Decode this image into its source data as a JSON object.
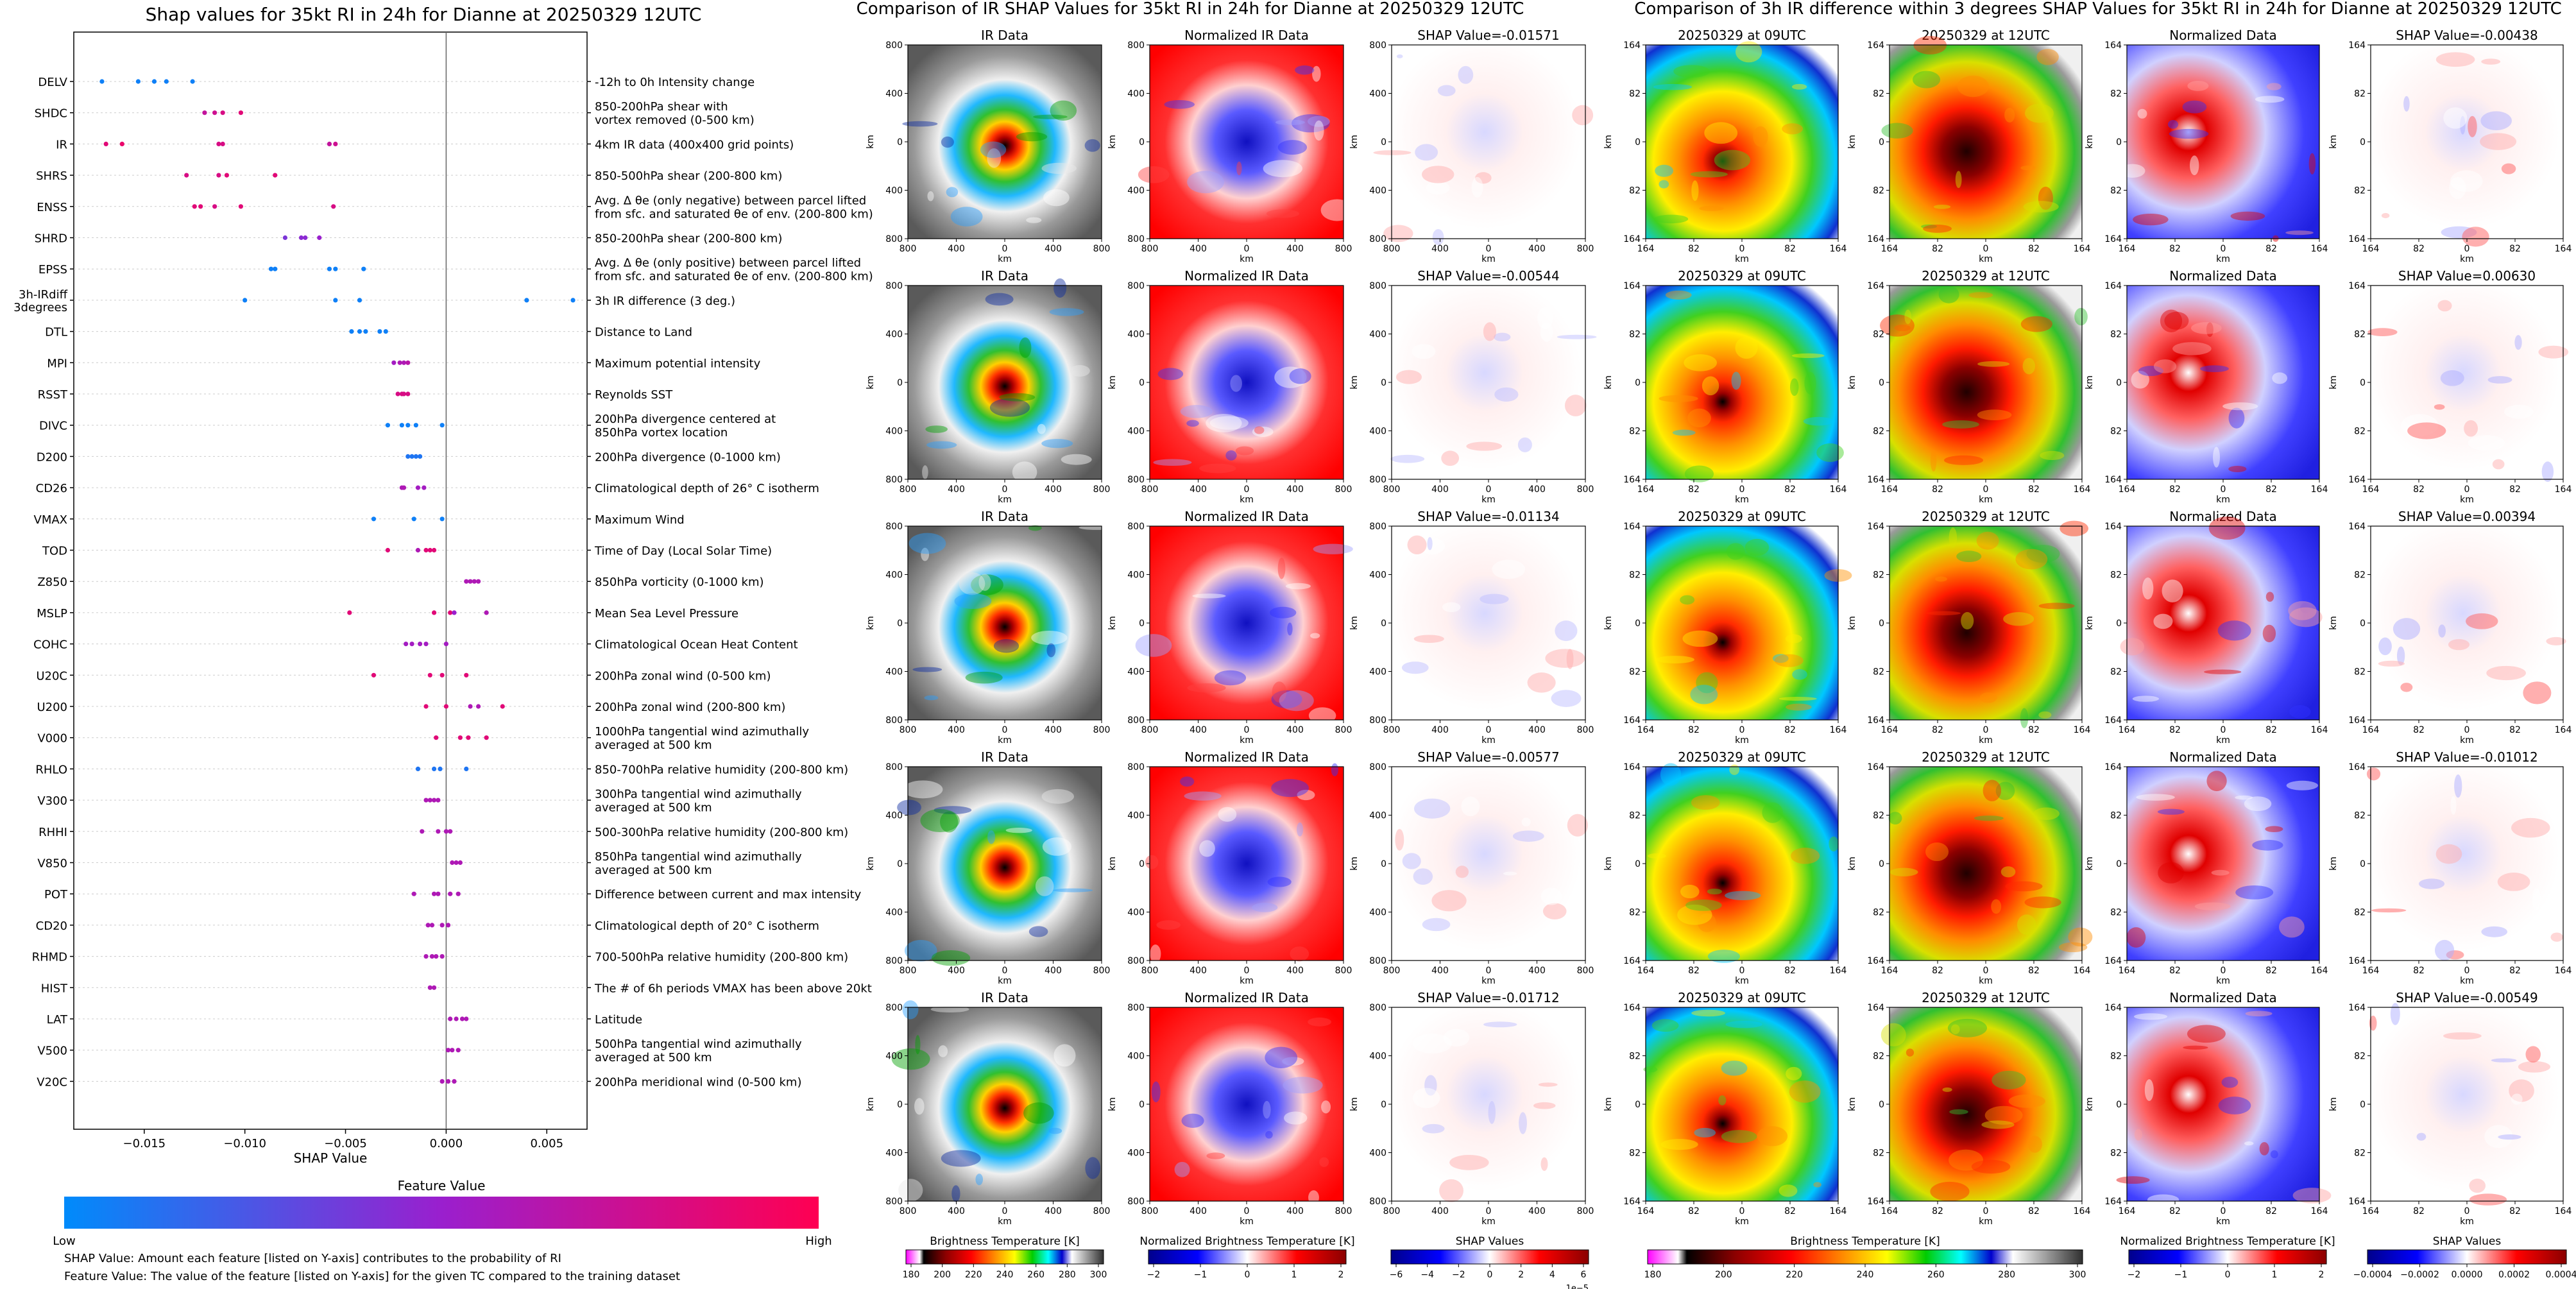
{
  "beeswarm": {
    "chart_data": {
      "type": "scatter",
      "title": "Shap values for 35kt RI in 24h for Dianne at 20250329 12UTC",
      "xlabel": "SHAP Value",
      "xlim": [
        -0.0185,
        0.007
      ],
      "xticks": [
        -0.015,
        -0.01,
        -0.005,
        0.0,
        0.005
      ],
      "xtick_labels": [
        "−0.015",
        "−0.010",
        "−0.005",
        "0.000",
        "0.005"
      ],
      "features": [
        {
          "code": "DELV",
          "desc": [
            "-12h to 0h Intensity change"
          ],
          "points": [
            [
              -0.0171,
              0.05
            ],
            [
              -0.0153,
              0.05
            ],
            [
              -0.0145,
              0.05
            ],
            [
              -0.0139,
              0.05
            ],
            [
              -0.0126,
              0.05
            ]
          ]
        },
        {
          "code": "SHDC",
          "desc": [
            "850-200hPa shear with",
            "vortex removed (0-500 km)"
          ],
          "points": [
            [
              -0.012,
              0.7
            ],
            [
              -0.0115,
              0.75
            ],
            [
              -0.0111,
              0.8
            ],
            [
              -0.0102,
              0.85
            ]
          ]
        },
        {
          "code": "IR",
          "desc": [
            "4km IR data (400x400 grid points)"
          ],
          "points": [
            [
              -0.0169,
              0.85
            ],
            [
              -0.0161,
              0.9
            ],
            [
              -0.0113,
              0.8
            ],
            [
              -0.0111,
              0.8
            ],
            [
              -0.0058,
              0.7
            ],
            [
              -0.0055,
              0.75
            ]
          ]
        },
        {
          "code": "SHRS",
          "desc": [
            "850-500hPa shear (200-800 km)"
          ],
          "points": [
            [
              -0.0129,
              0.8
            ],
            [
              -0.0113,
              0.8
            ],
            [
              -0.0109,
              0.85
            ],
            [
              -0.0085,
              0.85
            ]
          ]
        },
        {
          "code": "ENSS",
          "desc": [
            "Avg. Δ θe (only negative) between parcel lifted",
            "from sfc. and saturated θe of env. (200-800 km)"
          ],
          "points": [
            [
              -0.0125,
              0.85
            ],
            [
              -0.0122,
              0.85
            ],
            [
              -0.0115,
              0.8
            ],
            [
              -0.0102,
              0.85
            ],
            [
              -0.0056,
              0.8
            ]
          ]
        },
        {
          "code": "SHRD",
          "desc": [
            "850-200hPa shear (200-800 km)"
          ],
          "points": [
            [
              -0.008,
              0.4
            ],
            [
              -0.0072,
              0.45
            ],
            [
              -0.007,
              0.45
            ],
            [
              -0.0063,
              0.5
            ]
          ]
        },
        {
          "code": "EPSS",
          "desc": [
            "Avg. Δ θe (only positive) between parcel lifted",
            "from sfc. and saturated θe of env. (200-800 km)"
          ],
          "points": [
            [
              -0.0087,
              0.05
            ],
            [
              -0.0085,
              0.05
            ],
            [
              -0.0058,
              0.05
            ],
            [
              -0.0055,
              0.05
            ],
            [
              -0.0041,
              0.05
            ]
          ]
        },
        {
          "code": "3h-IRdiff\n3degrees",
          "desc": [
            "3h IR difference (3 deg.)"
          ],
          "points": [
            [
              -0.01,
              0.05
            ],
            [
              -0.0055,
              0.05
            ],
            [
              -0.0043,
              0.05
            ],
            [
              0.004,
              0.05
            ],
            [
              0.0063,
              0.05
            ]
          ]
        },
        {
          "code": "DTL",
          "desc": [
            "Distance to Land"
          ],
          "points": [
            [
              -0.0047,
              0.05
            ],
            [
              -0.0043,
              0.05
            ],
            [
              -0.004,
              0.05
            ],
            [
              -0.0033,
              0.05
            ],
            [
              -0.003,
              0.05
            ]
          ]
        },
        {
          "code": "MPI",
          "desc": [
            "Maximum potential intensity"
          ],
          "points": [
            [
              -0.0026,
              0.55
            ],
            [
              -0.0023,
              0.6
            ],
            [
              -0.0021,
              0.6
            ],
            [
              -0.0019,
              0.65
            ]
          ]
        },
        {
          "code": "RSST",
          "desc": [
            "Reynolds SST"
          ],
          "points": [
            [
              -0.0024,
              0.8
            ],
            [
              -0.0022,
              0.8
            ],
            [
              -0.0021,
              0.8
            ],
            [
              -0.0019,
              0.8
            ]
          ]
        },
        {
          "code": "DIVC",
          "desc": [
            "200hPa divergence centered at",
            "850hPa vortex location"
          ],
          "points": [
            [
              -0.0029,
              0.05
            ],
            [
              -0.0022,
              0.05
            ],
            [
              -0.0019,
              0.05
            ],
            [
              -0.0015,
              0.05
            ],
            [
              -0.0002,
              0.05
            ]
          ]
        },
        {
          "code": "D200",
          "desc": [
            "200hPa divergence (0-1000 km)"
          ],
          "points": [
            [
              -0.0019,
              0.1
            ],
            [
              -0.0017,
              0.1
            ],
            [
              -0.0015,
              0.1
            ],
            [
              -0.0013,
              0.1
            ]
          ]
        },
        {
          "code": "CD26",
          "desc": [
            "Climatological depth of 26° C isotherm"
          ],
          "points": [
            [
              -0.0022,
              0.6
            ],
            [
              -0.0021,
              0.6
            ],
            [
              -0.0014,
              0.55
            ],
            [
              -0.0011,
              0.55
            ]
          ]
        },
        {
          "code": "VMAX",
          "desc": [
            "Maximum Wind"
          ],
          "points": [
            [
              -0.0036,
              0.05
            ],
            [
              -0.0016,
              0.05
            ],
            [
              -0.0002,
              0.05
            ]
          ]
        },
        {
          "code": "TOD",
          "desc": [
            "Time of Day (Local Solar Time)"
          ],
          "points": [
            [
              -0.0029,
              0.85
            ],
            [
              -0.0014,
              0.6
            ],
            [
              -0.001,
              0.85
            ],
            [
              -0.0008,
              0.85
            ],
            [
              -0.0006,
              0.85
            ]
          ]
        },
        {
          "code": "Z850",
          "desc": [
            "850hPa vorticity (0-1000 km)"
          ],
          "points": [
            [
              0.001,
              0.6
            ],
            [
              0.0012,
              0.6
            ],
            [
              0.0014,
              0.6
            ],
            [
              0.0016,
              0.6
            ]
          ]
        },
        {
          "code": "MSLP",
          "desc": [
            "Mean Sea Level Pressure"
          ],
          "points": [
            [
              -0.0048,
              0.85
            ],
            [
              -0.0006,
              0.85
            ],
            [
              0.0002,
              0.85
            ],
            [
              0.0004,
              0.5
            ],
            [
              0.002,
              0.6
            ]
          ]
        },
        {
          "code": "COHC",
          "desc": [
            "Climatological Ocean Heat Content"
          ],
          "points": [
            [
              -0.002,
              0.55
            ],
            [
              -0.0017,
              0.55
            ],
            [
              -0.0013,
              0.55
            ],
            [
              -0.001,
              0.55
            ],
            [
              0.0,
              0.55
            ]
          ]
        },
        {
          "code": "U20C",
          "desc": [
            "200hPa zonal wind (0-500 km)"
          ],
          "points": [
            [
              -0.0036,
              0.85
            ],
            [
              -0.0008,
              0.85
            ],
            [
              -0.0002,
              0.85
            ],
            [
              0.001,
              0.85
            ]
          ]
        },
        {
          "code": "U200",
          "desc": [
            "200hPa zonal wind (200-800 km)"
          ],
          "points": [
            [
              -0.001,
              0.85
            ],
            [
              0.0,
              0.85
            ],
            [
              0.0012,
              0.6
            ],
            [
              0.0016,
              0.6
            ],
            [
              0.0028,
              0.85
            ]
          ]
        },
        {
          "code": "V000",
          "desc": [
            "1000hPa tangential wind azimuthally",
            "averaged at 500 km"
          ],
          "points": [
            [
              -0.0005,
              0.85
            ],
            [
              0.0007,
              0.85
            ],
            [
              0.0011,
              0.85
            ],
            [
              0.002,
              0.85
            ]
          ]
        },
        {
          "code": "RHLO",
          "desc": [
            "850-700hPa relative humidity (200-800 km)"
          ],
          "points": [
            [
              -0.0014,
              0.1
            ],
            [
              -0.0006,
              0.1
            ],
            [
              -0.0003,
              0.1
            ],
            [
              0.001,
              0.1
            ]
          ]
        },
        {
          "code": "V300",
          "desc": [
            "300hPa tangential wind azimuthally",
            "averaged at 500 km"
          ],
          "points": [
            [
              -0.001,
              0.6
            ],
            [
              -0.0008,
              0.6
            ],
            [
              -0.0006,
              0.6
            ],
            [
              -0.0004,
              0.6
            ]
          ]
        },
        {
          "code": "RHHI",
          "desc": [
            "500-300hPa relative humidity (200-800 km)"
          ],
          "points": [
            [
              -0.0012,
              0.6
            ],
            [
              -0.0004,
              0.6
            ],
            [
              0.0,
              0.6
            ],
            [
              0.0002,
              0.6
            ]
          ]
        },
        {
          "code": "V850",
          "desc": [
            "850hPa tangential wind azimuthally",
            "averaged at 500 km"
          ],
          "points": [
            [
              0.0003,
              0.6
            ],
            [
              0.0005,
              0.6
            ],
            [
              0.0007,
              0.6
            ]
          ]
        },
        {
          "code": "POT",
          "desc": [
            "Difference between current and max intensity"
          ],
          "points": [
            [
              -0.0016,
              0.6
            ],
            [
              -0.0006,
              0.6
            ],
            [
              -0.0004,
              0.6
            ],
            [
              0.0002,
              0.6
            ],
            [
              0.0006,
              0.6
            ]
          ]
        },
        {
          "code": "CD20",
          "desc": [
            "Climatological depth of 20° C isotherm"
          ],
          "points": [
            [
              -0.0009,
              0.6
            ],
            [
              -0.0007,
              0.6
            ],
            [
              -0.0002,
              0.6
            ],
            [
              0.0001,
              0.6
            ]
          ]
        },
        {
          "code": "RHMD",
          "desc": [
            "700-500hPa relative humidity (200-800 km)"
          ],
          "points": [
            [
              -0.001,
              0.6
            ],
            [
              -0.0007,
              0.6
            ],
            [
              -0.0005,
              0.6
            ],
            [
              -0.0002,
              0.6
            ]
          ]
        },
        {
          "code": "HIST",
          "desc": [
            "The # of 6h periods VMAX has been above 20kt"
          ],
          "points": [
            [
              -0.0008,
              0.6
            ],
            [
              -0.0006,
              0.6
            ]
          ]
        },
        {
          "code": "LAT",
          "desc": [
            "Latitude"
          ],
          "points": [
            [
              0.0002,
              0.6
            ],
            [
              0.0005,
              0.6
            ],
            [
              0.0008,
              0.6
            ],
            [
              0.001,
              0.6
            ]
          ]
        },
        {
          "code": "V500",
          "desc": [
            "500hPa tangential wind azimuthally",
            "averaged at 500 km"
          ],
          "points": [
            [
              0.0001,
              0.6
            ],
            [
              0.0003,
              0.6
            ],
            [
              0.0006,
              0.6
            ]
          ]
        },
        {
          "code": "V20C",
          "desc": [
            "200hPa meridional wind (0-500 km)"
          ],
          "points": [
            [
              -0.0002,
              0.6
            ],
            [
              0.0001,
              0.6
            ],
            [
              0.0004,
              0.6
            ]
          ]
        }
      ],
      "colorbar": {
        "label": "Feature Value",
        "low_label": "Low",
        "high_label": "High",
        "low_color": "#008bfb",
        "mid_color": "#9a1fce",
        "high_color": "#ff0052"
      }
    },
    "notes": [
      "SHAP Value: Amount each feature [listed on Y-axis] contributes to the probability of RI",
      "Feature Value: The value of the feature [listed on Y-axis] for the given TC compared to the training dataset"
    ]
  },
  "ir_section": {
    "title": "Comparison of IR SHAP Values for 35kt RI in 24h for Dianne at 20250329 12UTC",
    "columns": [
      "IR Data",
      "Normalized IR Data"
    ],
    "shap_titles": [
      "SHAP Value=-0.01571",
      "SHAP Value=-0.00544",
      "SHAP Value=-0.01134",
      "SHAP Value=-0.00577",
      "SHAP Value=-0.01712"
    ],
    "xlabel": "km",
    "ylabel": "km",
    "ticks": [
      "800",
      "400",
      "0",
      "400",
      "800"
    ],
    "colorbars": [
      {
        "label": "Brightness Temperature [K]",
        "ticks": [
          "180",
          "200",
          "220",
          "240",
          "260",
          "280",
          "300"
        ]
      },
      {
        "label": "Normalized Brightness Temperature [K]",
        "ticks": [
          "−2",
          "−1",
          "0",
          "1",
          "2"
        ]
      },
      {
        "label": "SHAP Values",
        "ticks": [
          "−6",
          "−4",
          "−2",
          "0",
          "2",
          "4",
          "6"
        ],
        "offset": "1e−5"
      }
    ]
  },
  "diff_section": {
    "title": "Comparison of 3h IR difference within 3 degrees SHAP Values for 35kt RI in 24h for Dianne at 20250329 12UTC",
    "columns": [
      "20250329 at 09UTC",
      "20250329 at 12UTC",
      "Normalized Data"
    ],
    "shap_titles": [
      "SHAP Value=-0.00438",
      "SHAP Value=0.00630",
      "SHAP Value=0.00394",
      "SHAP Value=-0.01012",
      "SHAP Value=-0.00549"
    ],
    "xlabel": "km",
    "ylabel": "km",
    "ticks": [
      "164",
      "82",
      "0",
      "82",
      "164"
    ],
    "colorbars": [
      {
        "label": "Brightness Temperature [K]",
        "ticks": [
          "180",
          "200",
          "220",
          "240",
          "260",
          "280",
          "300"
        ]
      },
      {
        "label": "Normalized Brightness Temperature [K]",
        "ticks": [
          "−2",
          "−1",
          "0",
          "1",
          "2"
        ]
      },
      {
        "label": "SHAP Values",
        "ticks": [
          "−0.0004",
          "−0.0002",
          "0.0000",
          "0.0002",
          "0.0004"
        ]
      }
    ]
  },
  "colors": {
    "ir_stops": [
      "#ff00ff",
      "#ffffff",
      "#000000",
      "#8b0000",
      "#ff0000",
      "#ff8c00",
      "#ffff00",
      "#00cc00",
      "#00ffff",
      "#0000cd",
      "#ffffff",
      "#505050"
    ],
    "diverging": [
      "#00008b",
      "#0000ff",
      "#ffffff",
      "#ff0000",
      "#8b0000"
    ]
  }
}
